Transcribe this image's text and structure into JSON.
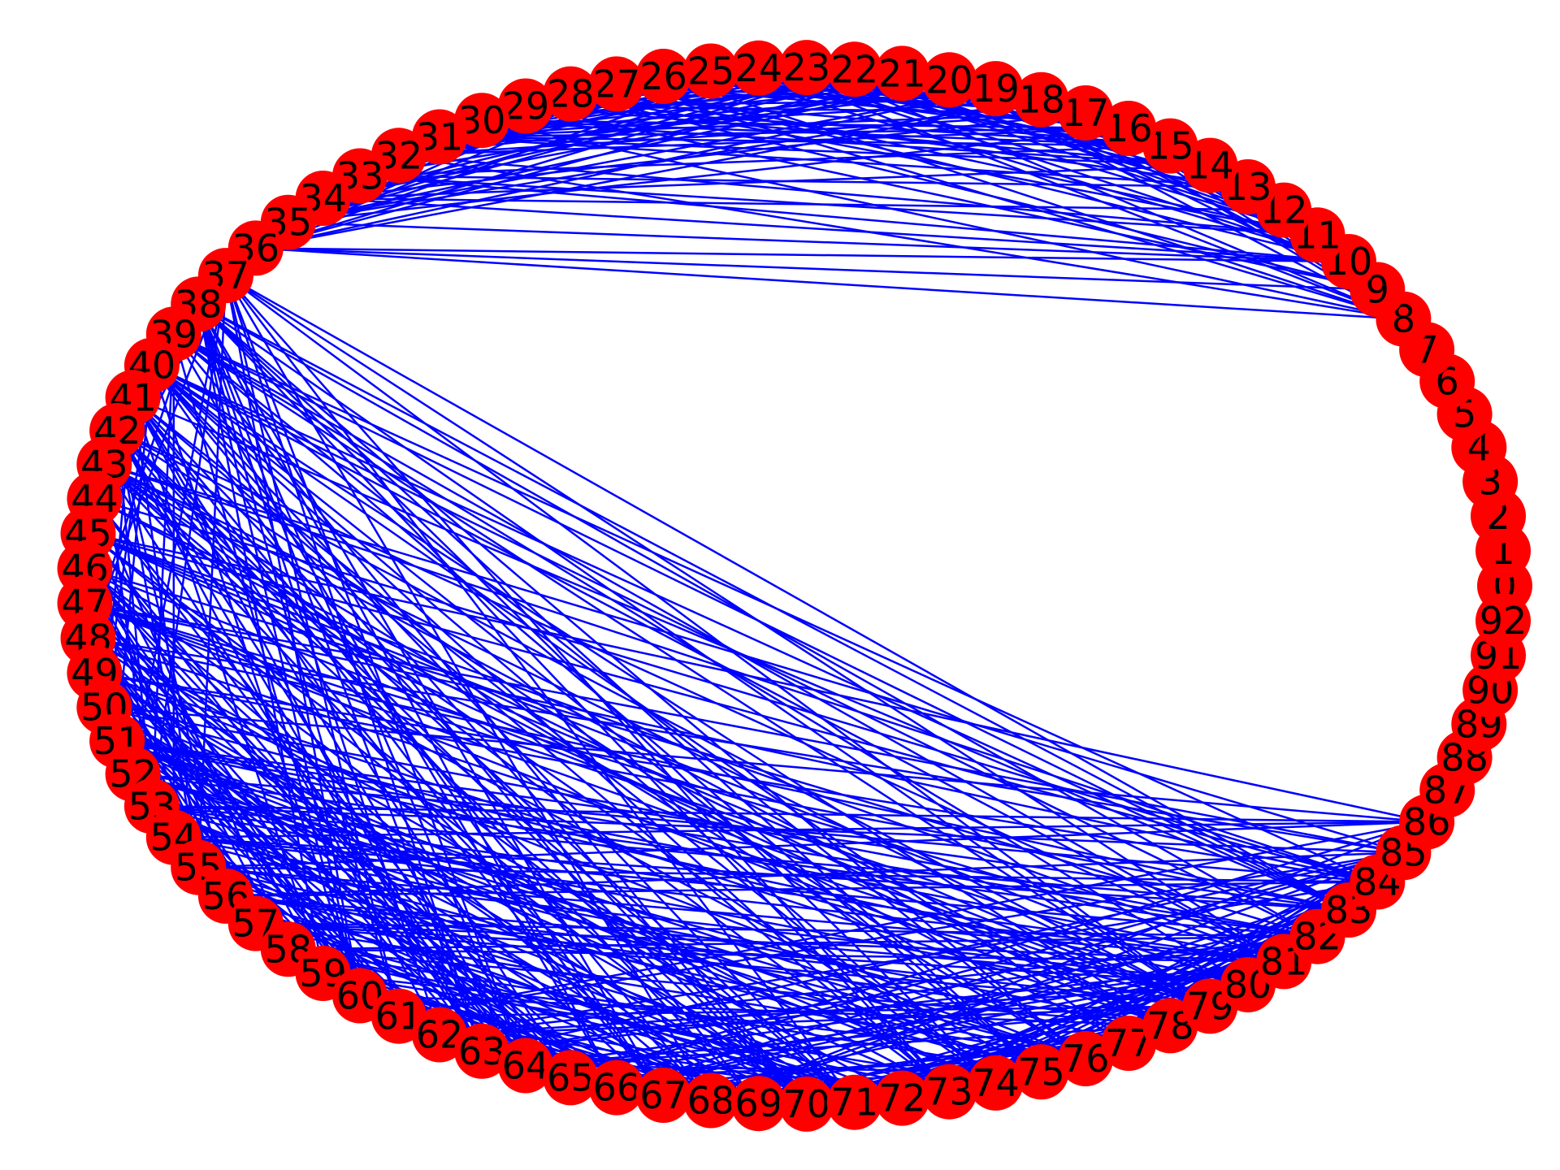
{
  "graph": {
    "layout": "circular",
    "node_count": 93,
    "node_labels": [
      "0",
      "1",
      "2",
      "3",
      "4",
      "5",
      "6",
      "7",
      "8",
      "9",
      "10",
      "11",
      "12",
      "13",
      "14",
      "15",
      "16",
      "17",
      "18",
      "19",
      "20",
      "21",
      "22",
      "23",
      "24",
      "25",
      "26",
      "27",
      "28",
      "29",
      "30",
      "31",
      "32",
      "33",
      "34",
      "35",
      "36",
      "37",
      "38",
      "39",
      "40",
      "41",
      "42",
      "43",
      "44",
      "45",
      "46",
      "47",
      "48",
      "49",
      "50",
      "51",
      "52",
      "53",
      "54",
      "55",
      "56",
      "57",
      "58",
      "59",
      "60",
      "61",
      "62",
      "63",
      "64",
      "65",
      "66",
      "67",
      "68",
      "69",
      "70",
      "71",
      "72",
      "73",
      "74",
      "75",
      "76",
      "77",
      "78",
      "79",
      "80",
      "81",
      "82",
      "83",
      "84",
      "85",
      "86",
      "87",
      "88",
      "89",
      "90",
      "91",
      "92"
    ],
    "node_color": "#ff0000",
    "edge_color": "#0000ff",
    "label_color": "#000000",
    "edges_note": "dense undirected edges connecting nodes 8–36 among themselves and nodes 37–86 among themselves; no edges touch nodes 0–7 or 87–92"
  }
}
